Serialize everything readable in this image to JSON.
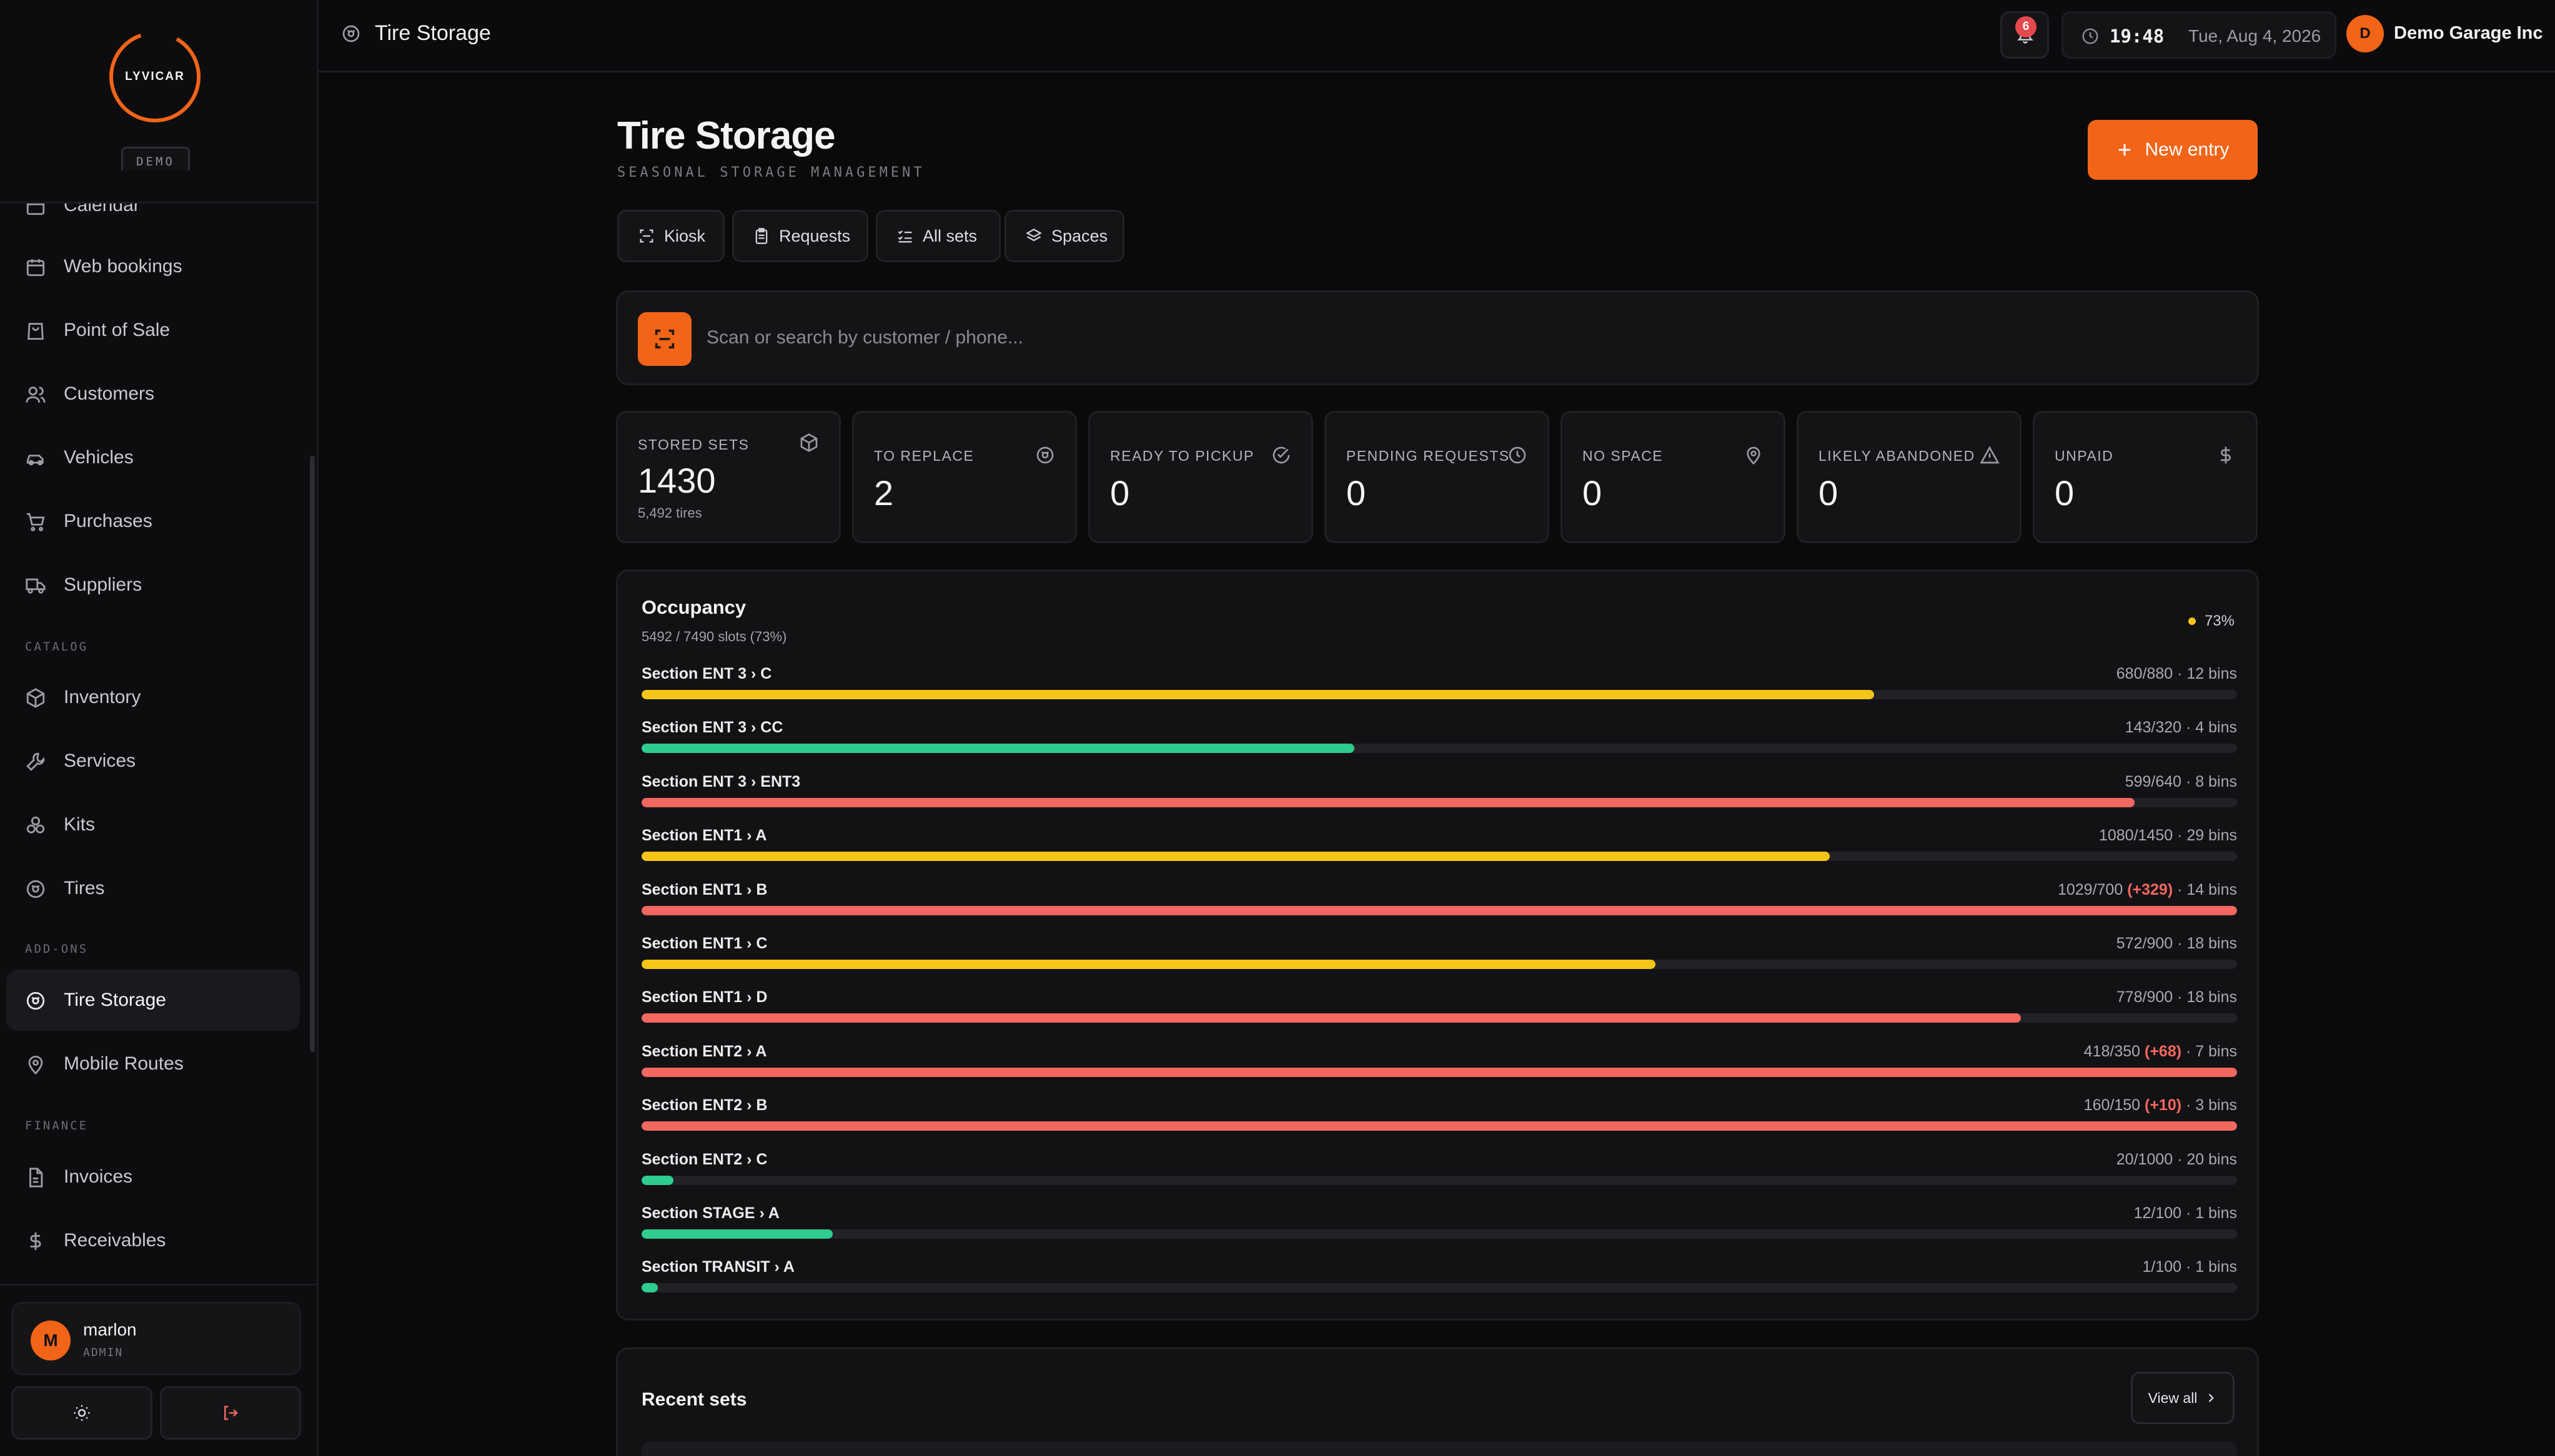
{
  "brand": {
    "logo": "LYVICAR",
    "badge": "DEMO"
  },
  "sidebar": {
    "partial_item": {
      "label": "Calendar",
      "icon": "calendar-icon"
    },
    "items": [
      {
        "label": "Web bookings",
        "icon": "calendar-icon"
      },
      {
        "label": "Point of Sale",
        "icon": "shopping-bag-icon"
      },
      {
        "label": "Customers",
        "icon": "users-icon"
      },
      {
        "label": "Vehicles",
        "icon": "car-icon"
      },
      {
        "label": "Purchases",
        "icon": "cart-icon"
      },
      {
        "label": "Suppliers",
        "icon": "truck-icon"
      }
    ],
    "catalog_heading": "CATALOG",
    "catalog": [
      {
        "label": "Inventory",
        "icon": "box-icon"
      },
      {
        "label": "Services",
        "icon": "wrench-icon"
      },
      {
        "label": "Kits",
        "icon": "kits-icon"
      },
      {
        "label": "Tires",
        "icon": "tire-icon"
      }
    ],
    "addons_heading": "ADD-ONS",
    "addons": [
      {
        "label": "Tire Storage",
        "icon": "tire-icon",
        "active": true
      },
      {
        "label": "Mobile Routes",
        "icon": "map-pin-icon"
      }
    ],
    "finance_heading": "FINANCE",
    "finance": [
      {
        "label": "Invoices",
        "icon": "file-icon"
      },
      {
        "label": "Receivables",
        "icon": "dollar-icon"
      }
    ],
    "user": {
      "initial": "M",
      "name": "marlon",
      "role": "ADMIN"
    }
  },
  "topbar": {
    "title": "Tire Storage",
    "notifications": "6",
    "time": "19:48",
    "date": "Tue, Aug 4, 2026",
    "org_initial": "D",
    "org_name": "Demo Garage Inc"
  },
  "main": {
    "title": "Tire Storage",
    "subtitle": "SEASONAL STORAGE MANAGEMENT",
    "new_entry": "New entry",
    "tabs": [
      {
        "label": "Kiosk",
        "icon": "scan-icon"
      },
      {
        "label": "Requests",
        "icon": "clipboard-icon"
      },
      {
        "label": "All sets",
        "icon": "list-check-icon"
      },
      {
        "label": "Spaces",
        "icon": "layers-icon"
      }
    ],
    "search_placeholder": "Scan or search by customer / phone..."
  },
  "stats": [
    {
      "label": "STORED SETS",
      "value": "1430",
      "sub": "5,492 tires",
      "icon": "box-icon"
    },
    {
      "label": "TO REPLACE",
      "value": "2",
      "icon": "tire-icon"
    },
    {
      "label": "READY TO PICKUP",
      "value": "0",
      "icon": "check-circle-icon"
    },
    {
      "label": "PENDING REQUESTS",
      "value": "0",
      "icon": "clock-icon"
    },
    {
      "label": "NO SPACE",
      "value": "0",
      "icon": "map-pin-icon"
    },
    {
      "label": "LIKELY ABANDONED",
      "value": "0",
      "icon": "warning-icon"
    },
    {
      "label": "UNPAID",
      "value": "0",
      "icon": "dollar-icon"
    }
  ],
  "occupancy": {
    "title": "Occupancy",
    "summary": "5492 / 7490 slots (73%)",
    "percent_label": "73%",
    "colors": {
      "yellow": "#f5c518",
      "green": "#2ecc8e",
      "red": "#f2675f"
    },
    "rows": [
      {
        "name": "Section ENT 3 › C",
        "used": "680/880",
        "over": "",
        "bins": " · 12 bins",
        "ratio": 0.7727,
        "color": "yellow"
      },
      {
        "name": "Section ENT 3 › CC",
        "used": "143/320",
        "over": "",
        "bins": " · 4 bins",
        "ratio": 0.4469,
        "color": "green"
      },
      {
        "name": "Section ENT 3 › ENT3",
        "used": "599/640",
        "over": "",
        "bins": " · 8 bins",
        "ratio": 0.9359,
        "color": "red"
      },
      {
        "name": "Section ENT1 › A",
        "used": "1080/1450",
        "over": "",
        "bins": " · 29 bins",
        "ratio": 0.7448,
        "color": "yellow"
      },
      {
        "name": "Section ENT1 › B",
        "used": "1029/700",
        "over": "(+329)",
        "bins": " · 14 bins",
        "ratio": 1.0,
        "color": "red"
      },
      {
        "name": "Section ENT1 › C",
        "used": "572/900",
        "over": "",
        "bins": " · 18 bins",
        "ratio": 0.6356,
        "color": "yellow"
      },
      {
        "name": "Section ENT1 › D",
        "used": "778/900",
        "over": "",
        "bins": " · 18 bins",
        "ratio": 0.8644,
        "color": "red"
      },
      {
        "name": "Section ENT2 › A",
        "used": "418/350",
        "over": "(+68)",
        "bins": " · 7 bins",
        "ratio": 1.0,
        "color": "red"
      },
      {
        "name": "Section ENT2 › B",
        "used": "160/150",
        "over": "(+10)",
        "bins": " · 3 bins",
        "ratio": 1.0,
        "color": "red"
      },
      {
        "name": "Section ENT2 › C",
        "used": "20/1000",
        "over": "",
        "bins": " · 20 bins",
        "ratio": 0.02,
        "color": "green"
      },
      {
        "name": "Section STAGE › A",
        "used": "12/100",
        "over": "",
        "bins": " · 1 bins",
        "ratio": 0.12,
        "color": "green"
      },
      {
        "name": "Section TRANSIT › A",
        "used": "1/100",
        "over": "",
        "bins": " · 1 bins",
        "ratio": 0.01,
        "color": "green"
      }
    ]
  },
  "recent": {
    "title": "Recent sets",
    "view_all": "View all"
  }
}
